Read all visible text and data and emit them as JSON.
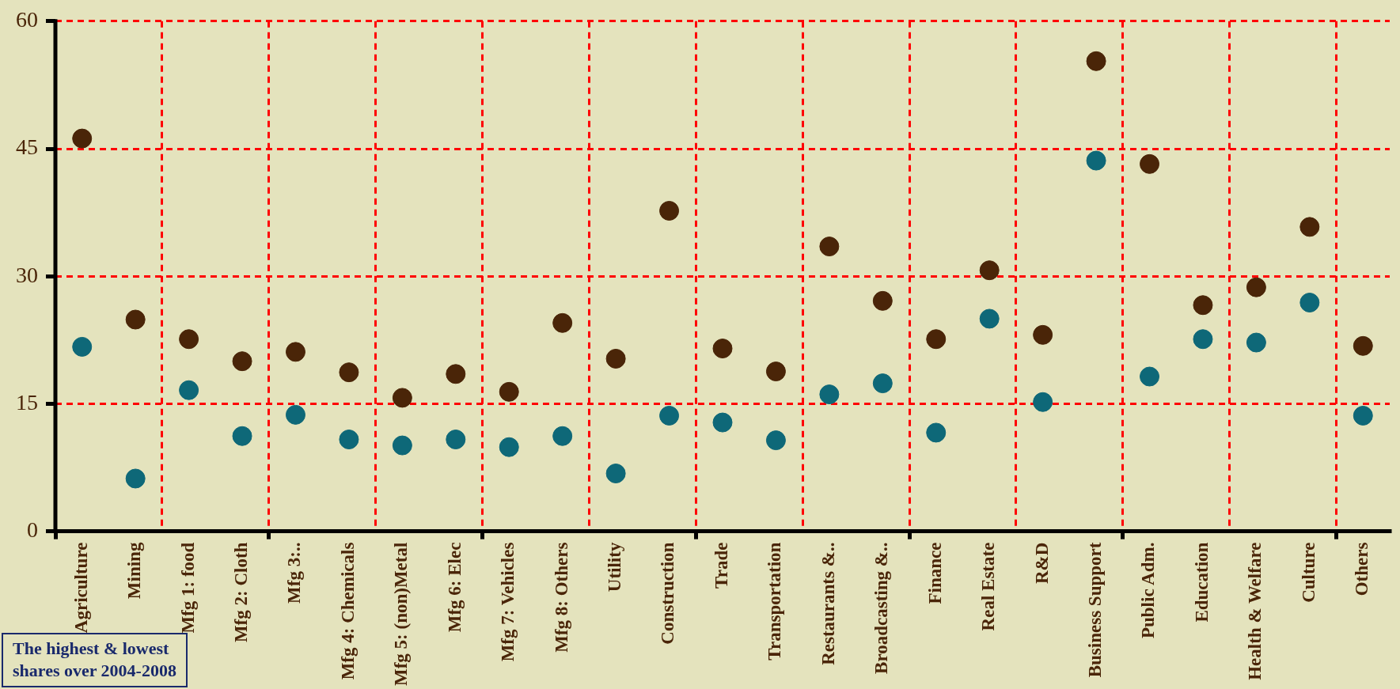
{
  "chart_data": {
    "type": "scatter",
    "categories": [
      "Agriculture",
      "Mining",
      "Mfg 1: food",
      "Mfg 2: Cloth",
      "Mfg 3:..",
      "Mfg 4: Chemicals",
      "Mfg 5: (non)Metal",
      "Mfg 6: Elec",
      "Mfg 7: Vehicles",
      "Mfg 8: Others",
      "Utility",
      "Construction",
      "Trade",
      "Transportation",
      "Restaurants &..",
      "Broadcasting &..",
      "Finance",
      "Real Estate",
      "R&D",
      "Business Support",
      "Public Adm.",
      "Education",
      "Health & Welfare",
      "Culture",
      "Others"
    ],
    "series": [
      {
        "color": "#4a2508",
        "values": [
          46.2,
          24.9,
          22.6,
          20.0,
          21.1,
          18.7,
          15.7,
          18.5,
          16.4,
          24.5,
          20.3,
          37.7,
          21.5,
          18.8,
          33.5,
          27.1,
          22.6,
          30.7,
          23.1,
          55.3,
          43.2,
          26.6,
          28.7,
          35.8,
          21.8
        ]
      },
      {
        "color": "#0e6878",
        "values": [
          21.7,
          6.2,
          16.6,
          11.2,
          13.7,
          10.8,
          10.1,
          10.8,
          9.9,
          11.2,
          6.8,
          13.6,
          12.8,
          10.7,
          16.1,
          17.4,
          11.6,
          25.0,
          15.2,
          43.6,
          18.2,
          22.6,
          22.2,
          26.9,
          13.6
        ]
      }
    ],
    "ylim": [
      0,
      60
    ],
    "yticks": [
      0,
      15,
      30,
      45,
      60
    ],
    "grid": true,
    "legend": false,
    "marker": "circle",
    "annotations": [
      "The highest & lowest",
      "shares over 2004-2008"
    ]
  }
}
